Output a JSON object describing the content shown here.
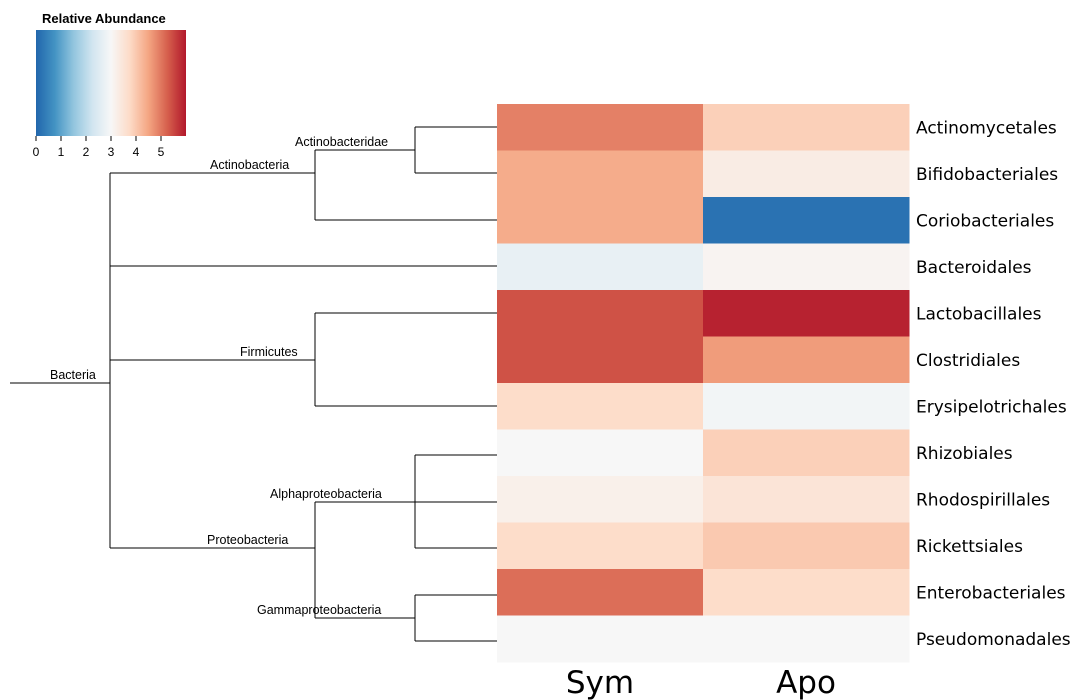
{
  "legend": {
    "title": "Relative Abundance",
    "ticks": [
      "0",
      "1",
      "2",
      "3",
      "4",
      "5"
    ],
    "range": [
      0,
      6
    ],
    "stops": [
      "#2166ac",
      "#4393c3",
      "#92c5de",
      "#d1e5f0",
      "#f7f7f7",
      "#fddbc7",
      "#f4a582",
      "#d6604d",
      "#b2182b"
    ]
  },
  "tree": {
    "labels": {
      "root": "Bacteria",
      "actinobacteria": "Actinobacteria",
      "actinobacteridae": "Actinobacteridae",
      "firmicutes": "Firmicutes",
      "proteobacteria": "Proteobacteria",
      "alphaproteobacteria": "Alphaproteobacteria",
      "gammaproteobacteria": "Gammaproteobacteria"
    }
  },
  "chart_data": {
    "type": "heatmap",
    "columns": [
      "Sym",
      "Apo"
    ],
    "rows": [
      "Actinomycetales",
      "Bifidobacteriales",
      "Coriobacteriales",
      "Bacteroidales",
      "Lactobacillales",
      "Clostridiales",
      "Erysipelotrichales",
      "Rhizobiales",
      "Rhodospirillales",
      "Rickettsiales",
      "Enterobacteriales",
      "Pseudomonadales"
    ],
    "values": [
      [
        4.9,
        3.9
      ],
      [
        4.4,
        3.3
      ],
      [
        4.4,
        0.2
      ],
      [
        2.7,
        3.1
      ],
      [
        5.4,
        5.9
      ],
      [
        5.4,
        4.6
      ],
      [
        3.7,
        2.9
      ],
      [
        3.0,
        3.9
      ],
      [
        3.2,
        3.5
      ],
      [
        3.7,
        4.0
      ],
      [
        5.1,
        3.7
      ],
      [
        3.0,
        3.0
      ]
    ],
    "legend_title": "Relative Abundance",
    "scale_range": [
      0,
      6
    ]
  }
}
